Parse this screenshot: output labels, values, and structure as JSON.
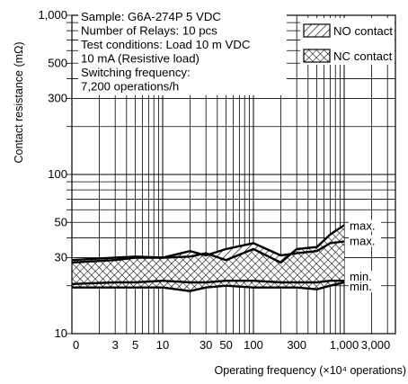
{
  "chart_data": {
    "type": "area",
    "xlabel": "Operating frequency (×10⁴ operations)",
    "ylabel": "Contact resistance (mΩ)",
    "xscale": "log",
    "yscale": "log",
    "xlim": [
      0,
      3000
    ],
    "ylim": [
      10,
      1000
    ],
    "x_ticks": [
      {
        "label": "0",
        "value": 0
      },
      {
        "label": "3",
        "value": 3
      },
      {
        "label": "5",
        "value": 5
      },
      {
        "label": "10",
        "value": 10
      },
      {
        "label": "30",
        "value": 30
      },
      {
        "label": "50",
        "value": 50
      },
      {
        "label": "100",
        "value": 100
      },
      {
        "label": "300",
        "value": 300
      },
      {
        "label": "1,000",
        "value": 1000
      },
      {
        "label": "3,000",
        "value": 3000
      }
    ],
    "y_ticks": [
      {
        "label": "10",
        "value": 10
      },
      {
        "label": "30",
        "value": 30
      },
      {
        "label": "50",
        "value": 50
      },
      {
        "label": "100",
        "value": 100
      },
      {
        "label": "300",
        "value": 300
      },
      {
        "label": "500",
        "value": 500
      },
      {
        "label": "1,000",
        "value": 1000
      }
    ],
    "grid": true,
    "annotation_lines": [
      "Sample: G6A-274P  5 VDC",
      "Number of Relays: 10 pcs",
      "Test conditions: Load 10 m VDC",
      "10 mA (Resistive load)",
      "Switching frequency:",
      "7,200 operations/h"
    ],
    "legend": {
      "position": "top-right",
      "items": [
        "NO contact",
        "NC contact"
      ]
    },
    "series": [
      {
        "name": "NO contact",
        "hatch": "diagonal",
        "x": [
          0,
          3,
          5,
          10,
          20,
          30,
          50,
          100,
          200,
          300,
          500,
          700,
          1000
        ],
        "max": [
          28,
          29,
          30,
          30,
          33,
          31,
          34,
          37,
          31,
          32,
          33,
          37,
          38
        ],
        "min": [
          20.5,
          21,
          21,
          21.5,
          21,
          21,
          21.5,
          21.5,
          21,
          21,
          21,
          21.5,
          21.5
        ]
      },
      {
        "name": "NC contact",
        "hatch": "cross",
        "x": [
          0,
          3,
          5,
          10,
          20,
          30,
          50,
          100,
          200,
          300,
          500,
          700,
          1000
        ],
        "max": [
          29,
          30,
          30.5,
          30,
          30.5,
          32,
          29,
          34,
          28,
          34,
          35,
          42,
          48
        ],
        "min": [
          19.5,
          19.5,
          19.5,
          19.5,
          18.5,
          19.5,
          20,
          19.5,
          19.5,
          19.5,
          19,
          20,
          21
        ]
      }
    ],
    "end_labels": {
      "max": "max.",
      "min": "min."
    }
  }
}
